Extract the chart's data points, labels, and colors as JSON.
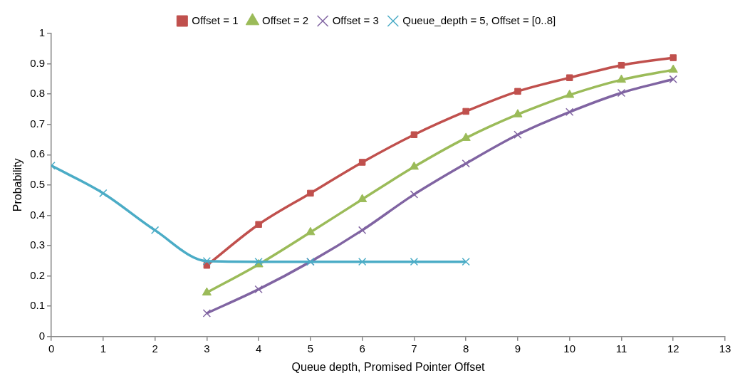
{
  "chart_data": {
    "type": "line",
    "xlabel": "Queue depth, Promised Pointer Offset",
    "ylabel": "Probability",
    "xlim": [
      0,
      13
    ],
    "xticks": [
      0,
      1,
      2,
      3,
      4,
      5,
      6,
      7,
      8,
      9,
      10,
      11,
      12,
      13
    ],
    "ylim": [
      0,
      1
    ],
    "yticks": [
      0,
      0.1,
      0.2,
      0.3,
      0.4,
      0.5,
      0.6,
      0.7,
      0.8,
      0.9,
      1
    ],
    "grid": false,
    "legend": "top",
    "series": [
      {
        "name": "Offset = 1",
        "color": "#c0504d",
        "marker": "square",
        "x": [
          3,
          4,
          5,
          6,
          7,
          8,
          9,
          10,
          11,
          12
        ],
        "values": [
          0.235,
          0.37,
          0.473,
          0.575,
          0.666,
          0.743,
          0.809,
          0.854,
          0.895,
          0.92
        ]
      },
      {
        "name": "Offset = 2",
        "color": "#9bbb59",
        "marker": "triangle",
        "x": [
          3,
          4,
          5,
          6,
          7,
          8,
          9,
          10,
          11,
          12
        ],
        "values": [
          0.145,
          0.238,
          0.344,
          0.453,
          0.56,
          0.655,
          0.733,
          0.797,
          0.847,
          0.88
        ]
      },
      {
        "name": "Offset = 3",
        "color": "#8064a2",
        "marker": "cross",
        "x": [
          3,
          4,
          5,
          6,
          7,
          8,
          9,
          10,
          11,
          12
        ],
        "values": [
          0.077,
          0.156,
          0.247,
          0.351,
          0.469,
          0.571,
          0.666,
          0.741,
          0.804,
          0.849
        ]
      },
      {
        "name": "Queue_depth = 5, Offset = [0..8]",
        "color": "#4bacc6",
        "marker": "cross",
        "x": [
          0,
          1,
          2,
          3,
          4,
          5,
          6,
          7,
          8
        ],
        "values": [
          0.564,
          0.473,
          0.351,
          0.249,
          0.247,
          0.247,
          0.247,
          0.247,
          0.247
        ]
      }
    ]
  }
}
